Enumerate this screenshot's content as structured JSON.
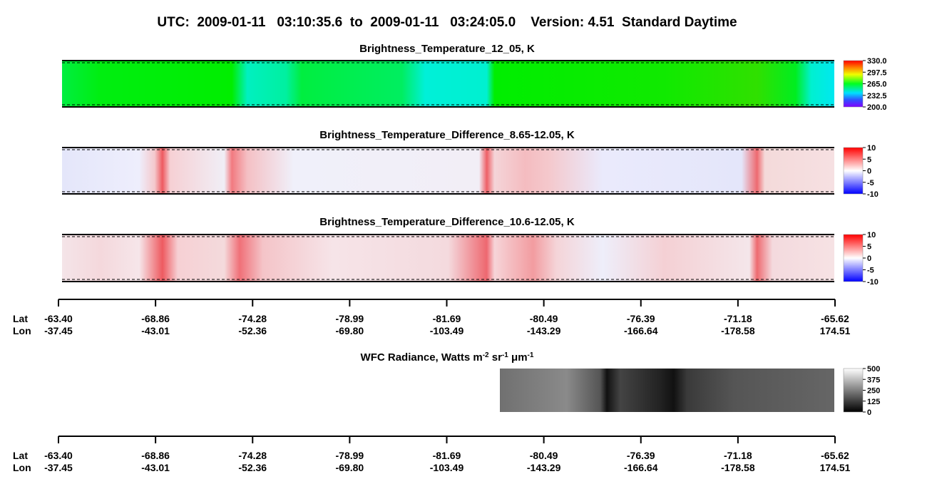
{
  "title": "UTC:  2009-01-11   03:10:35.6  to  2009-01-11   03:24:05.0    Version: 4.51  Standard Daytime",
  "panels": [
    {
      "title": "Brightness_Temperature_12_05, K",
      "colorbar": {
        "lim": [
          200,
          330
        ],
        "ticks": [
          {
            "value": 330,
            "label": "330.0"
          },
          {
            "value": 297.5,
            "label": "297.5"
          },
          {
            "value": 265,
            "label": "265.0"
          },
          {
            "value": 232.5,
            "label": "232.5"
          },
          {
            "value": 200,
            "label": "200.0"
          }
        ]
      }
    },
    {
      "title": "Brightness_Temperature_Difference_8.65-12.05, K",
      "colorbar": {
        "lim": [
          -10,
          10
        ],
        "ticks": [
          10,
          5,
          0,
          -5,
          -10
        ]
      }
    },
    {
      "title": "Brightness_Temperature_Difference_10.6-12.05, K",
      "colorbar": {
        "lim": [
          -10,
          10
        ],
        "ticks": [
          10,
          5,
          0,
          -5,
          -10
        ]
      }
    },
    {
      "title_parts": [
        {
          "text": "WFC Radiance, Watts m"
        },
        {
          "text": "-2",
          "sup": true
        },
        {
          "text": " sr"
        },
        {
          "text": "-1",
          "sup": true
        },
        {
          "text": " μm"
        },
        {
          "text": "-1",
          "sup": true
        }
      ],
      "colorbar": {
        "lim": [
          0,
          500
        ],
        "ticks": [
          500,
          375,
          250,
          125,
          0
        ]
      }
    }
  ],
  "axes": [
    {
      "row_labels": [
        "Lat",
        "Lon"
      ],
      "lat": [
        "-63.40",
        "-68.86",
        "-74.28",
        "-78.99",
        "-81.69",
        "-80.49",
        "-76.39",
        "-71.18",
        "-65.62"
      ],
      "lon": [
        "-37.45",
        "-43.01",
        "-52.36",
        "-69.80",
        "-103.49",
        "-143.29",
        "-166.64",
        "-178.58",
        "174.51"
      ]
    },
    {
      "row_labels": [
        "Lat",
        "Lon"
      ],
      "lat": [
        "-63.40",
        "-68.86",
        "-74.28",
        "-78.99",
        "-81.69",
        "-80.49",
        "-76.39",
        "-71.18",
        "-65.62"
      ],
      "lon": [
        "-37.45",
        "-43.01",
        "-52.36",
        "-69.80",
        "-103.49",
        "-143.29",
        "-166.64",
        "-178.58",
        "174.51"
      ]
    }
  ]
}
